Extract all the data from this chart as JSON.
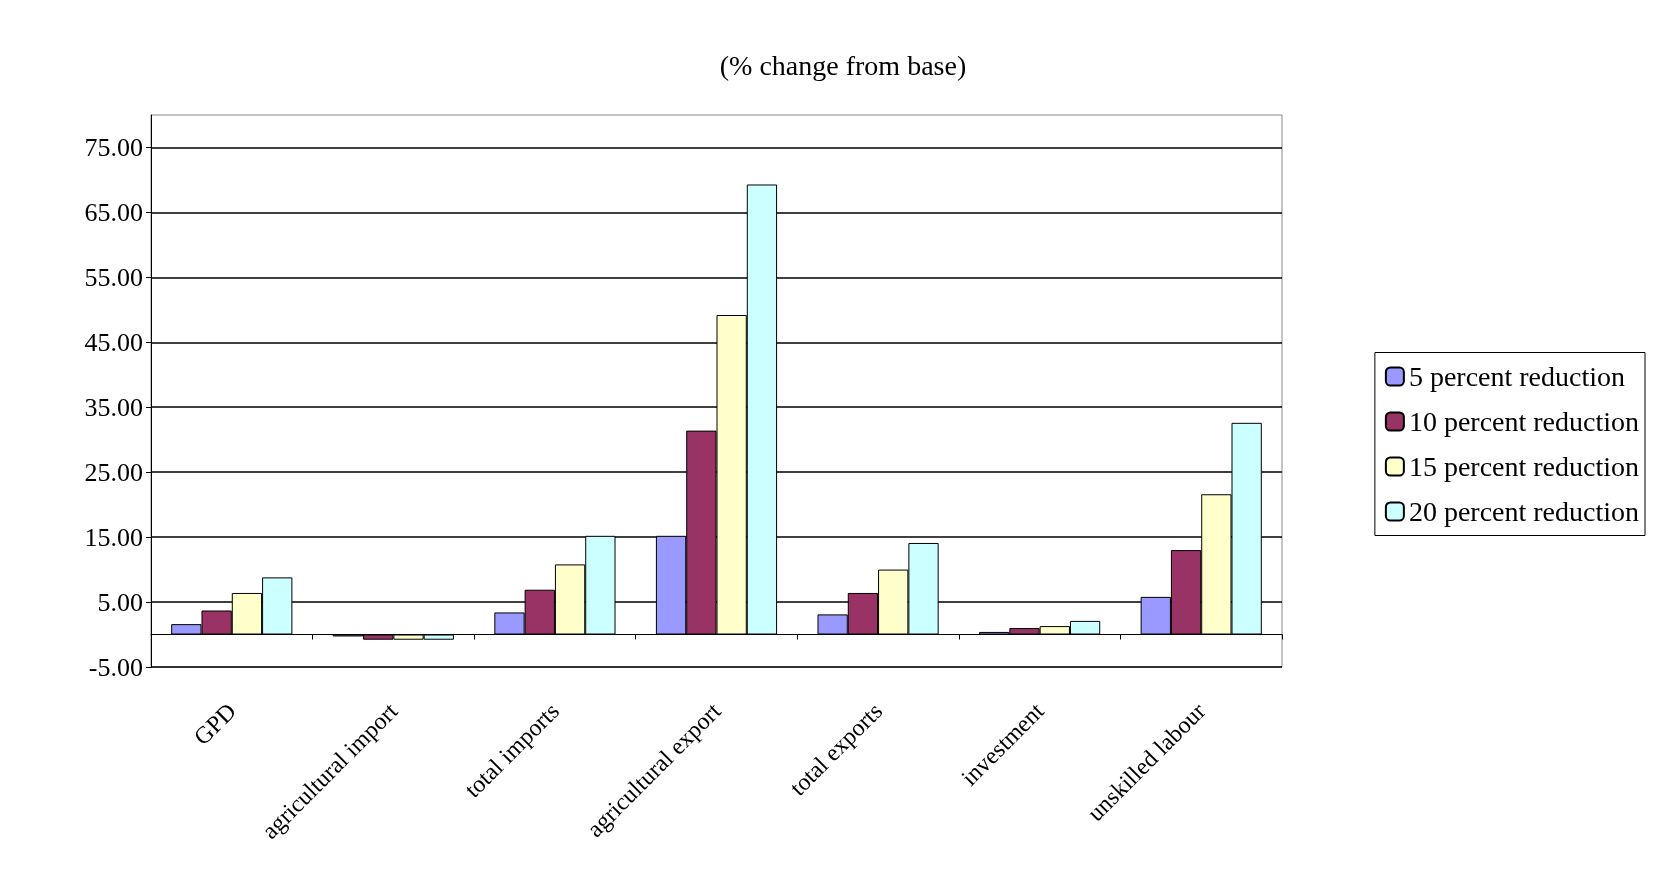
{
  "chart_data": {
    "type": "bar",
    "title": "(% change from base)",
    "categories": [
      "GPD",
      "agricultural import",
      "total imports",
      "agricultural export",
      "total exports",
      "investment",
      "unskilled labour"
    ],
    "series": [
      {
        "name": "5 percent reduction",
        "color": "#9999ff",
        "values": [
          1.6,
          -0.3,
          3.4,
          15.2,
          3.1,
          0.4,
          5.8
        ]
      },
      {
        "name": "10 percent reduction",
        "color": "#993366",
        "values": [
          3.7,
          -0.8,
          6.9,
          31.4,
          6.4,
          1.0,
          13.0
        ]
      },
      {
        "name": "15 percent reduction",
        "color": "#ffffcc",
        "values": [
          6.4,
          -0.8,
          10.8,
          49.2,
          10.0,
          1.3,
          21.6
        ]
      },
      {
        "name": "20 percent reduction",
        "color": "#ccffff",
        "values": [
          8.8,
          -0.8,
          15.2,
          69.3,
          14.1,
          2.1,
          32.6
        ]
      }
    ],
    "ylim": [
      -5,
      80
    ],
    "yticks": [
      {
        "value": -5,
        "label": "-5.00"
      },
      {
        "value": 5,
        "label": "5.00"
      },
      {
        "value": 15,
        "label": "15.00"
      },
      {
        "value": 25,
        "label": "25.00"
      },
      {
        "value": 35,
        "label": "35.00"
      },
      {
        "value": 45,
        "label": "45.00"
      },
      {
        "value": 55,
        "label": "55.00"
      },
      {
        "value": 65,
        "label": "65.00"
      },
      {
        "value": 75,
        "label": "75.00"
      }
    ],
    "grid": "y",
    "legend": "right"
  }
}
